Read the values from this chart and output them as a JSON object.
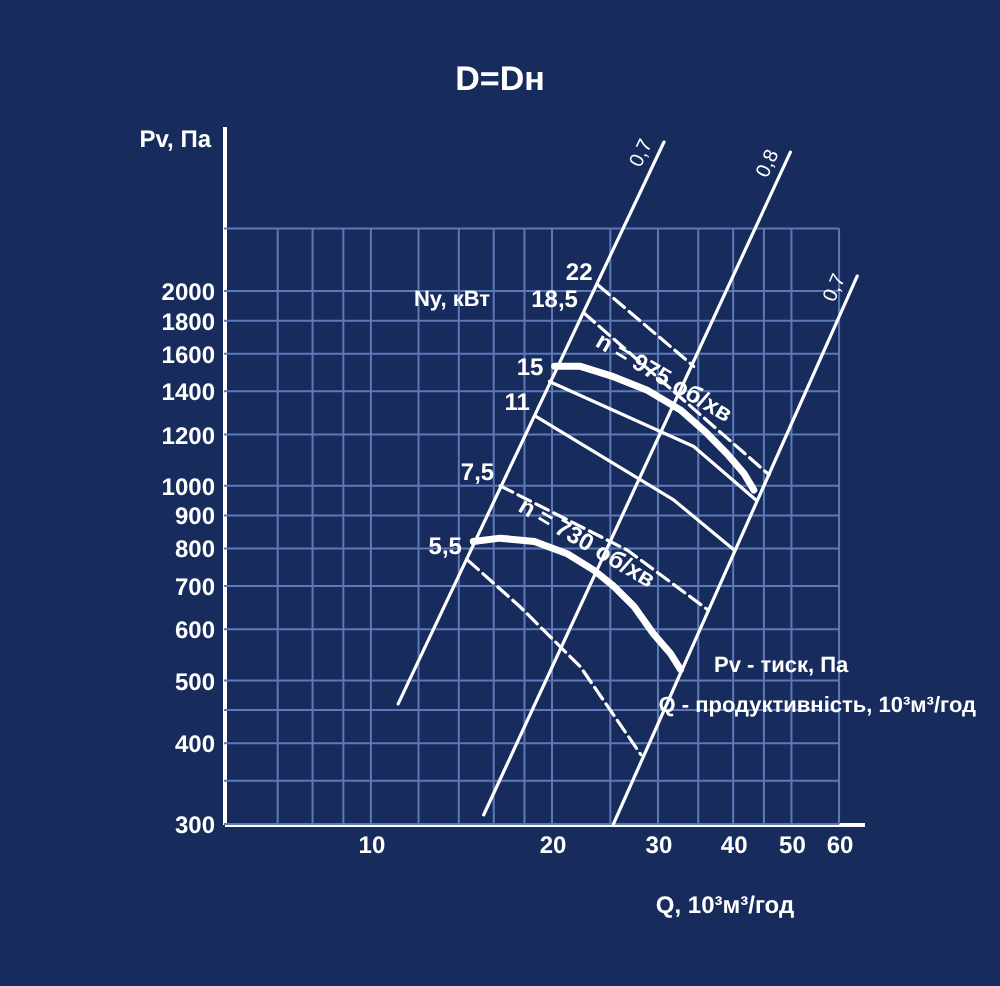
{
  "chart_data": {
    "type": "line",
    "title": "D=Dн",
    "xlabel": "Q, 10³м³/год",
    "ylabel": "Pv, Па",
    "log": "xy",
    "xlim": [
      5.7,
      66
    ],
    "ylim": [
      300,
      3600
    ],
    "xticks": [
      {
        "value": 7,
        "label": null
      },
      {
        "value": 8,
        "label": null
      },
      {
        "value": 9,
        "label": null
      },
      10,
      {
        "value": 12,
        "label": null
      },
      {
        "value": 14,
        "label": null
      },
      {
        "value": 16,
        "label": null
      },
      {
        "value": 18,
        "label": null
      },
      20,
      {
        "value": 25,
        "label": null
      },
      30,
      {
        "value": 35,
        "label": null
      },
      40,
      {
        "value": 45,
        "label": null
      },
      50,
      60
    ],
    "yticks": [
      300,
      {
        "value": 350,
        "label": null
      },
      400,
      {
        "value": 450,
        "label": null
      },
      500,
      600,
      700,
      800,
      900,
      1000,
      1200,
      1400,
      1600,
      1800,
      2000,
      {
        "value": 2500,
        "label": null
      }
    ],
    "grid": true,
    "annotations": [
      "Ny, кВт",
      "Pv - тиск, Па",
      "Q - продуктивність, 10³м³/год"
    ],
    "series": [
      {
        "name": "n = 975 об/хв",
        "color": "#ffffff",
        "x": [
          20.2,
          22.3,
          25.3,
          28.8,
          32.7,
          36.2,
          39.1,
          41.7,
          43.3
        ],
        "values": [
          1530,
          1530,
          1475,
          1405,
          1310,
          1205,
          1120,
          1045,
          985
        ]
      },
      {
        "name": "n = 730 об/хв",
        "color": "#ffffff",
        "x": [
          14.8,
          16.4,
          18.7,
          21.2,
          23.5,
          25.3,
          27.4,
          29.5,
          31.5,
          32.7
        ],
        "values": [
          820,
          830,
          820,
          785,
          740,
          700,
          650,
          590,
          550,
          520
        ]
      },
      {
        "name": "0,7",
        "color": "#ffffff",
        "x": [
          11.1,
          30.7
        ],
        "values": [
          460,
          3400
        ]
      },
      {
        "name": "0,8",
        "color": "#ffffff",
        "x": [
          15.4,
          49.8
        ],
        "values": [
          310,
          3280
        ]
      },
      {
        "name": "0,7",
        "color": "#ffffff",
        "x": [
          25.3,
          64.3
        ],
        "values": [
          300,
          2110
        ]
      },
      {
        "name": "22",
        "color": "#ffffff",
        "line_style": "dashed",
        "x": [
          23.9,
          34.4
        ],
        "values": [
          2040,
          1530
        ]
      },
      {
        "name": "18,5",
        "color": "#ffffff",
        "line_style": "dashed",
        "x": [
          22.6,
          45.9
        ],
        "values": [
          1850,
          1040
        ]
      },
      {
        "name": "15",
        "color": "#ffffff",
        "line_style": "solid",
        "x": [
          19.8,
          34.4,
          43.7
        ],
        "values": [
          1450,
          1150,
          950
        ]
      },
      {
        "name": "11",
        "color": "#ffffff",
        "line_style": "solid",
        "x": [
          18.8,
          31.9,
          40.2
        ],
        "values": [
          1280,
          950,
          795
        ]
      },
      {
        "name": "7,5",
        "color": "#ffffff",
        "line_style": "dashed",
        "x": [
          16.4,
          26.7,
          36.4
        ],
        "values": [
          1000,
          795,
          642
        ]
      },
      {
        "name": "5,5",
        "color": "#ffffff",
        "line_style": "dashed",
        "x": [
          14.5,
          17.7,
          22.3,
          28.1
        ],
        "values": [
          767,
          650,
          525,
          384
        ]
      }
    ]
  }
}
